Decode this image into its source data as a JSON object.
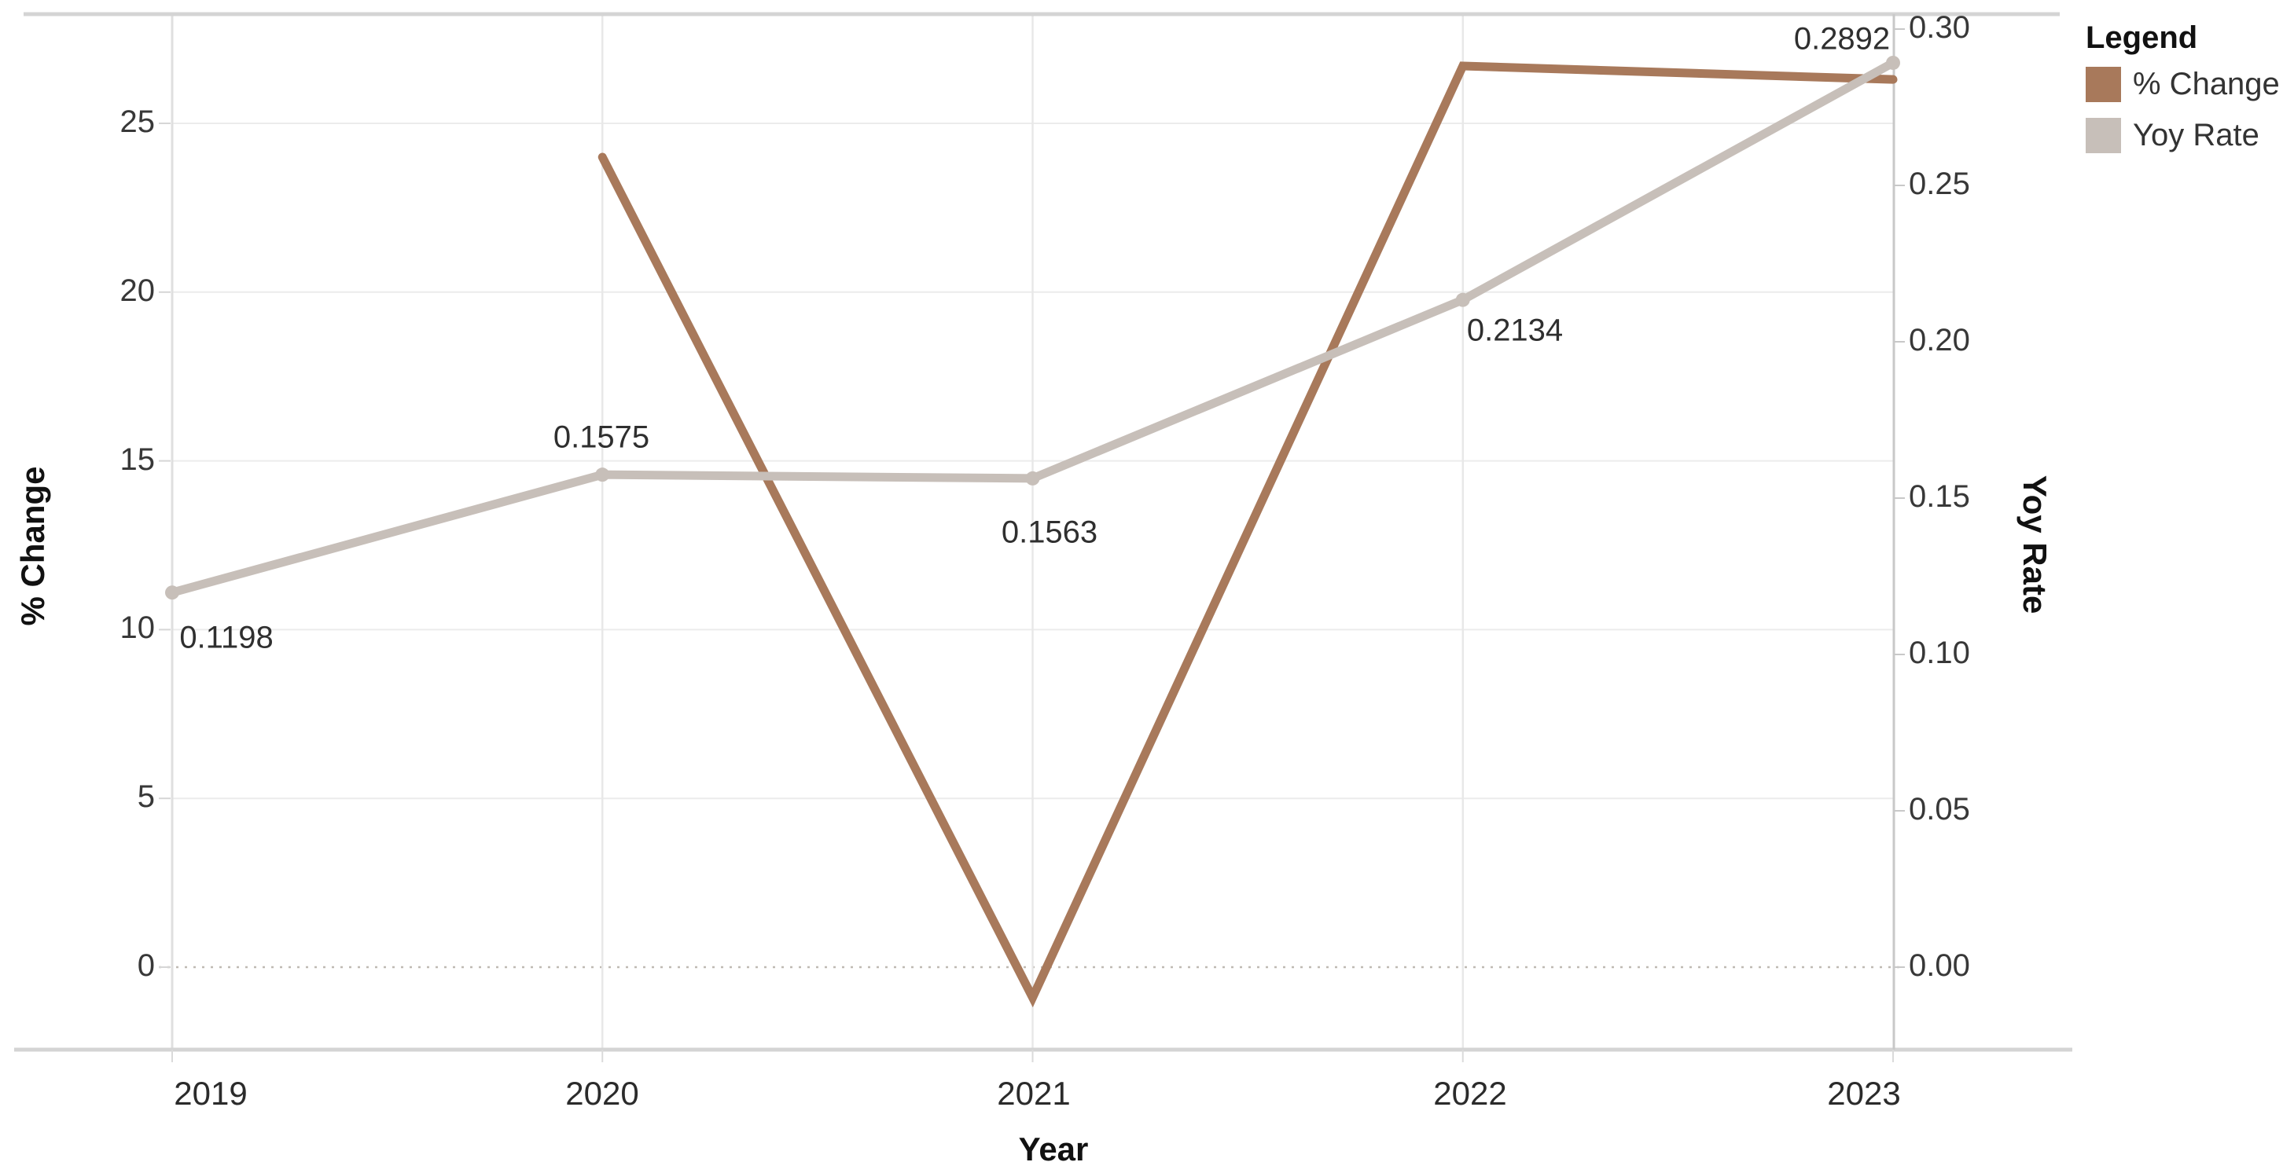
{
  "chart_data": {
    "type": "line",
    "title": "",
    "xlabel": "Year",
    "ylabel_left": "% Change",
    "ylabel_right": "Yoy Rate",
    "x": [
      2019,
      2020,
      2021,
      2022,
      2023
    ],
    "series": [
      {
        "name": "% Change",
        "axis": "left",
        "color": "#a8795b",
        "values": [
          null,
          24.0,
          -0.9,
          26.7,
          26.3
        ]
      },
      {
        "name": "Yoy Rate",
        "axis": "right",
        "color": "#c7bfb9",
        "values": [
          0.1198,
          0.1575,
          0.1563,
          0.2134,
          0.2892
        ],
        "point_labels": [
          "0.1198",
          "0.1575",
          "0.1563",
          "0.2134",
          "0.2892"
        ]
      }
    ],
    "left_axis": {
      "ticks": [
        0,
        5,
        10,
        15,
        20,
        25
      ],
      "tick_labels": [
        "0",
        "5",
        "10",
        "15",
        "20",
        "25"
      ],
      "range": [
        -2.4,
        28.2
      ],
      "zero_line": "dotted"
    },
    "right_axis": {
      "ticks": [
        0.0,
        0.05,
        0.1,
        0.15,
        0.2,
        0.25,
        0.3
      ],
      "tick_labels": [
        "0.00",
        "0.05",
        "0.10",
        "0.15",
        "0.20",
        "0.25",
        "0.30"
      ],
      "range": [
        -0.026,
        0.305
      ]
    },
    "x_axis": {
      "tick_labels": [
        "2019",
        "2020",
        "2021",
        "2022",
        "2023"
      ]
    },
    "grid": true,
    "legend": {
      "title": "Legend",
      "position": "top-right-outside",
      "items": [
        {
          "label": "% Change",
          "color": "#a8795b"
        },
        {
          "label": "Yoy Rate",
          "color": "#c7bfb9"
        }
      ]
    },
    "colors": {
      "pct_change_line": "#a8795b",
      "yoy_rate_line": "#c7bfb9",
      "gridline": "#ececec",
      "pane_border": "#d4d4d4",
      "zero_line": "#c0bab3"
    }
  }
}
